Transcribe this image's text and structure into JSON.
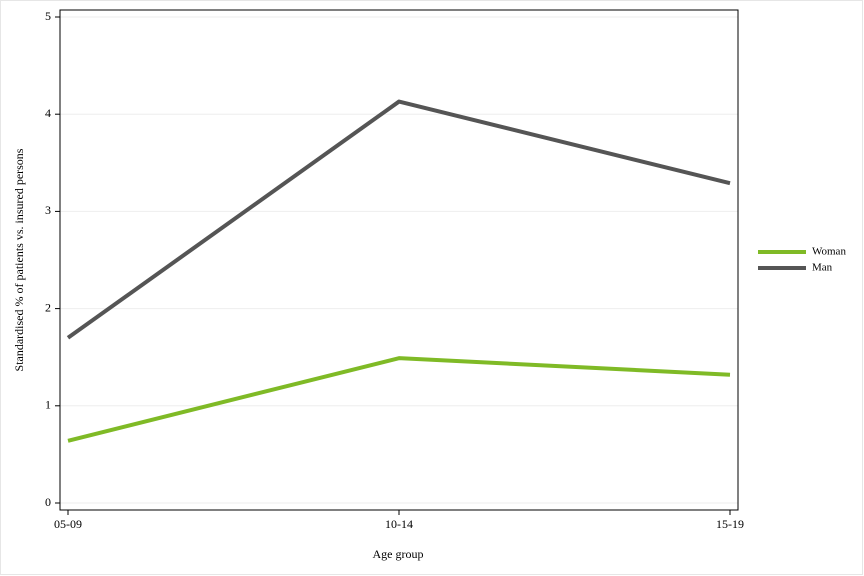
{
  "chart_data": {
    "type": "line",
    "x_label": "Age group",
    "y_label": "Standardised % of patients vs. insured persons",
    "categories": [
      "05-09",
      "10-14",
      "15-19"
    ],
    "series": [
      {
        "name": "Woman",
        "color": "#7fba26",
        "values": [
          0.64,
          1.49,
          1.32
        ]
      },
      {
        "name": "Man",
        "color": "#555555",
        "values": [
          1.7,
          4.13,
          3.29
        ]
      }
    ],
    "ylim": [
      0,
      5
    ],
    "yticks": [
      0,
      1,
      2,
      3,
      4,
      5
    ],
    "grid": true,
    "legend": "right"
  }
}
